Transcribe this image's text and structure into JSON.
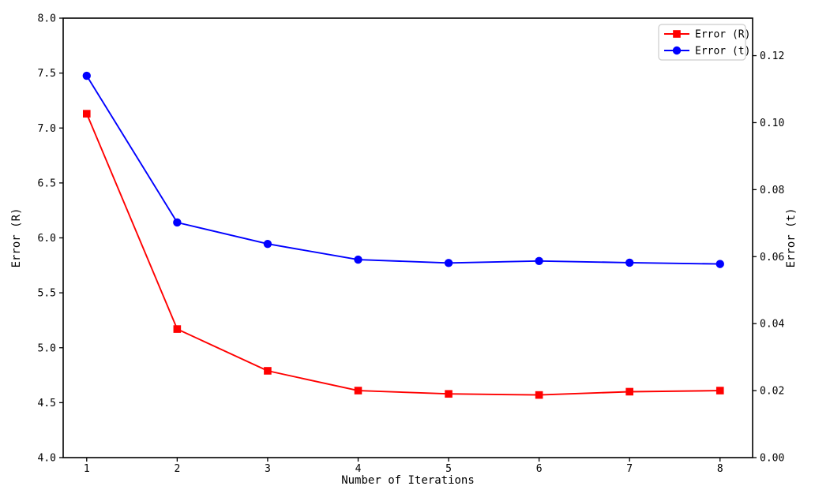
{
  "figure": {
    "background": "#ffffff",
    "title": "",
    "x_ticks": [
      "1",
      "2",
      "3",
      "4",
      "5",
      "6",
      "7",
      "8"
    ],
    "y_left_ticks": [
      "4.0",
      "4.5",
      "5.0",
      "5.5",
      "6.0",
      "6.5",
      "7.0",
      "7.5",
      "8.0"
    ],
    "y_right_ticks": [
      "0.00",
      "0.02",
      "0.04",
      "0.06",
      "0.08",
      "0.10",
      "0.12"
    ]
  },
  "chart_data": {
    "type": "line",
    "title": "",
    "xlabel": "Number of Iterations",
    "ylabel_left": "Error (R)",
    "ylabel_right": "Error (t)",
    "x": [
      1,
      2,
      3,
      4,
      5,
      6,
      7,
      8
    ],
    "series": [
      {
        "name": "Error (R)",
        "axis": "left",
        "color": "#ff0000",
        "marker": "square",
        "values": [
          7.13,
          5.17,
          4.79,
          4.61,
          4.58,
          4.57,
          4.6,
          4.61
        ]
      },
      {
        "name": "Error (t)",
        "axis": "right",
        "color": "#0000ff",
        "marker": "circle",
        "values": [
          0.114,
          0.0702,
          0.0638,
          0.0591,
          0.0581,
          0.0587,
          0.0582,
          0.0578
        ]
      }
    ],
    "xlim": [
      0.74,
      8.36
    ],
    "ylim_left": [
      4.0,
      8.0
    ],
    "ylim_right": [
      0.0,
      0.1312
    ],
    "grid": false,
    "legend": {
      "position": "upper right",
      "entries": [
        "Error (R)",
        "Error (t)"
      ],
      "border_color": "#cccccc",
      "background": "#ffffff"
    },
    "colors": {
      "spine": "#000000",
      "tick_label": "#000000"
    }
  }
}
